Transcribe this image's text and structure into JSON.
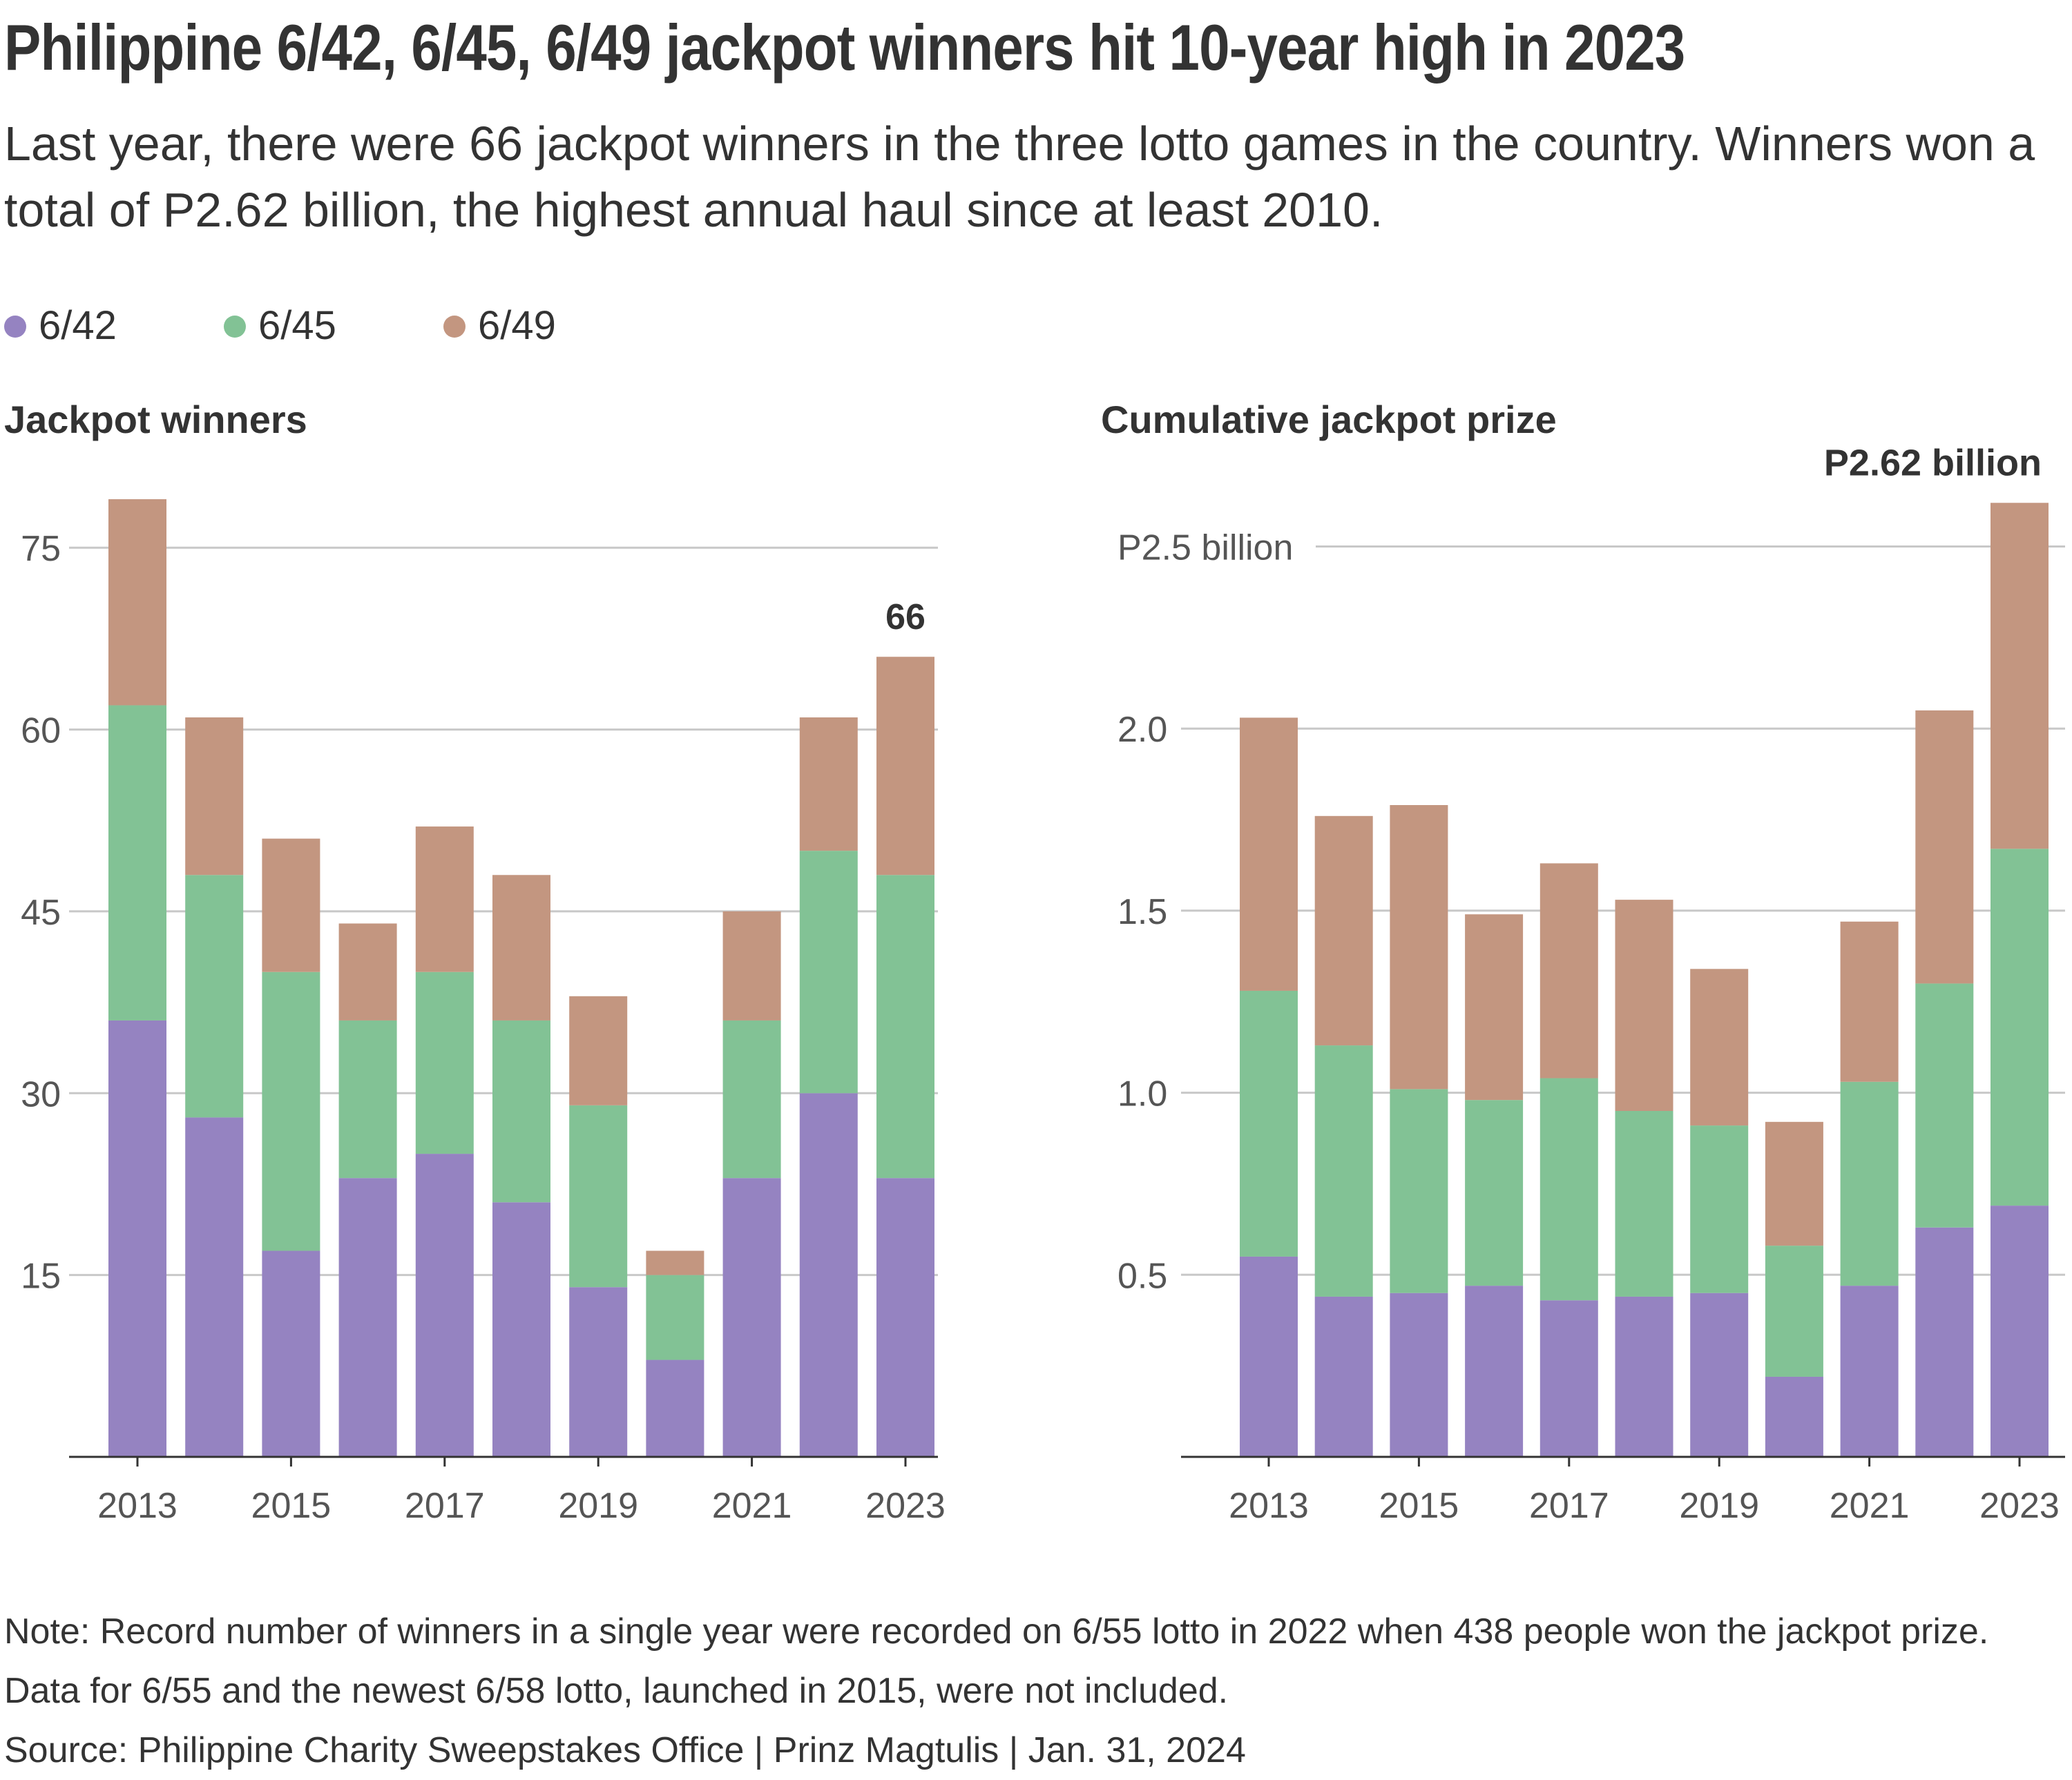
{
  "title": "Philippine 6/42, 6/45, 6/49 jackpot winners hit 10-year high in 2023",
  "subtitle": "Last year, there were 66 jackpot winners in the three lotto games in the country. Winners won a total of P2.62 billion, the highest annual haul since at least 2010.",
  "legend": [
    {
      "label": "6/42",
      "color": "#9583c1"
    },
    {
      "label": "6/45",
      "color": "#82c295"
    },
    {
      "label": "6/49",
      "color": "#c39680"
    }
  ],
  "note": "Note: Record number of winners in a single year were recorded on 6/55 lotto in 2022 when 438 people won the jackpot prize. Data for 6/55 and the newest 6/58 lotto, launched in 2015, were not included.",
  "source": "Source: Philippine Charity Sweepstakes Office | Prinz Magtulis | Jan. 31, 2024",
  "chart_data": [
    {
      "type": "bar",
      "stacked": true,
      "title": "Jackpot winners",
      "categories": [
        "2013",
        "2014",
        "2015",
        "2016",
        "2017",
        "2018",
        "2019",
        "2020",
        "2021",
        "2022",
        "2023"
      ],
      "x_tick_labels": [
        "2013",
        "",
        "2015",
        "",
        "2017",
        "",
        "2019",
        "",
        "2021",
        "",
        "2023"
      ],
      "series": [
        {
          "name": "6/42",
          "values": [
            36,
            28,
            17,
            23,
            25,
            21,
            14,
            8,
            23,
            30,
            23
          ]
        },
        {
          "name": "6/45",
          "values": [
            26,
            20,
            23,
            13,
            15,
            15,
            15,
            7,
            13,
            20,
            25
          ]
        },
        {
          "name": "6/49",
          "values": [
            17,
            13,
            11,
            8,
            12,
            12,
            9,
            2,
            9,
            11,
            18
          ]
        }
      ],
      "ylim": [
        0,
        79
      ],
      "y_ticks": [
        15,
        30,
        45,
        60,
        75
      ],
      "y_tick_labels": [
        "15",
        "30",
        "45",
        "60",
        "75"
      ],
      "annotation": {
        "category": "2023",
        "text": "66"
      },
      "grid": true
    },
    {
      "type": "bar",
      "stacked": true,
      "title": "Cumulative jackpot prize",
      "categories": [
        "2013",
        "2014",
        "2015",
        "2016",
        "2017",
        "2018",
        "2019",
        "2020",
        "2021",
        "2022",
        "2023"
      ],
      "x_tick_labels": [
        "2013",
        "",
        "2015",
        "",
        "2017",
        "",
        "2019",
        "",
        "2021",
        "",
        "2023"
      ],
      "series": [
        {
          "name": "6/42",
          "values": [
            0.55,
            0.44,
            0.45,
            0.47,
            0.43,
            0.44,
            0.45,
            0.22,
            0.47,
            0.63,
            0.69
          ]
        },
        {
          "name": "6/45",
          "values": [
            0.73,
            0.69,
            0.56,
            0.51,
            0.61,
            0.51,
            0.46,
            0.36,
            0.56,
            0.67,
            0.98
          ]
        },
        {
          "name": "6/49",
          "values": [
            0.75,
            0.63,
            0.78,
            0.51,
            0.59,
            0.58,
            0.43,
            0.34,
            0.44,
            0.75,
            0.95
          ]
        }
      ],
      "ylim": [
        0,
        2.63
      ],
      "y_ticks": [
        0.5,
        1.0,
        1.5,
        2.0,
        2.5
      ],
      "y_tick_labels": [
        "0.5",
        "1.0",
        "1.5",
        "2.0",
        "P2.5 billion"
      ],
      "annotation": {
        "category": "2023",
        "text": "P2.62 billion"
      },
      "grid": true
    }
  ]
}
